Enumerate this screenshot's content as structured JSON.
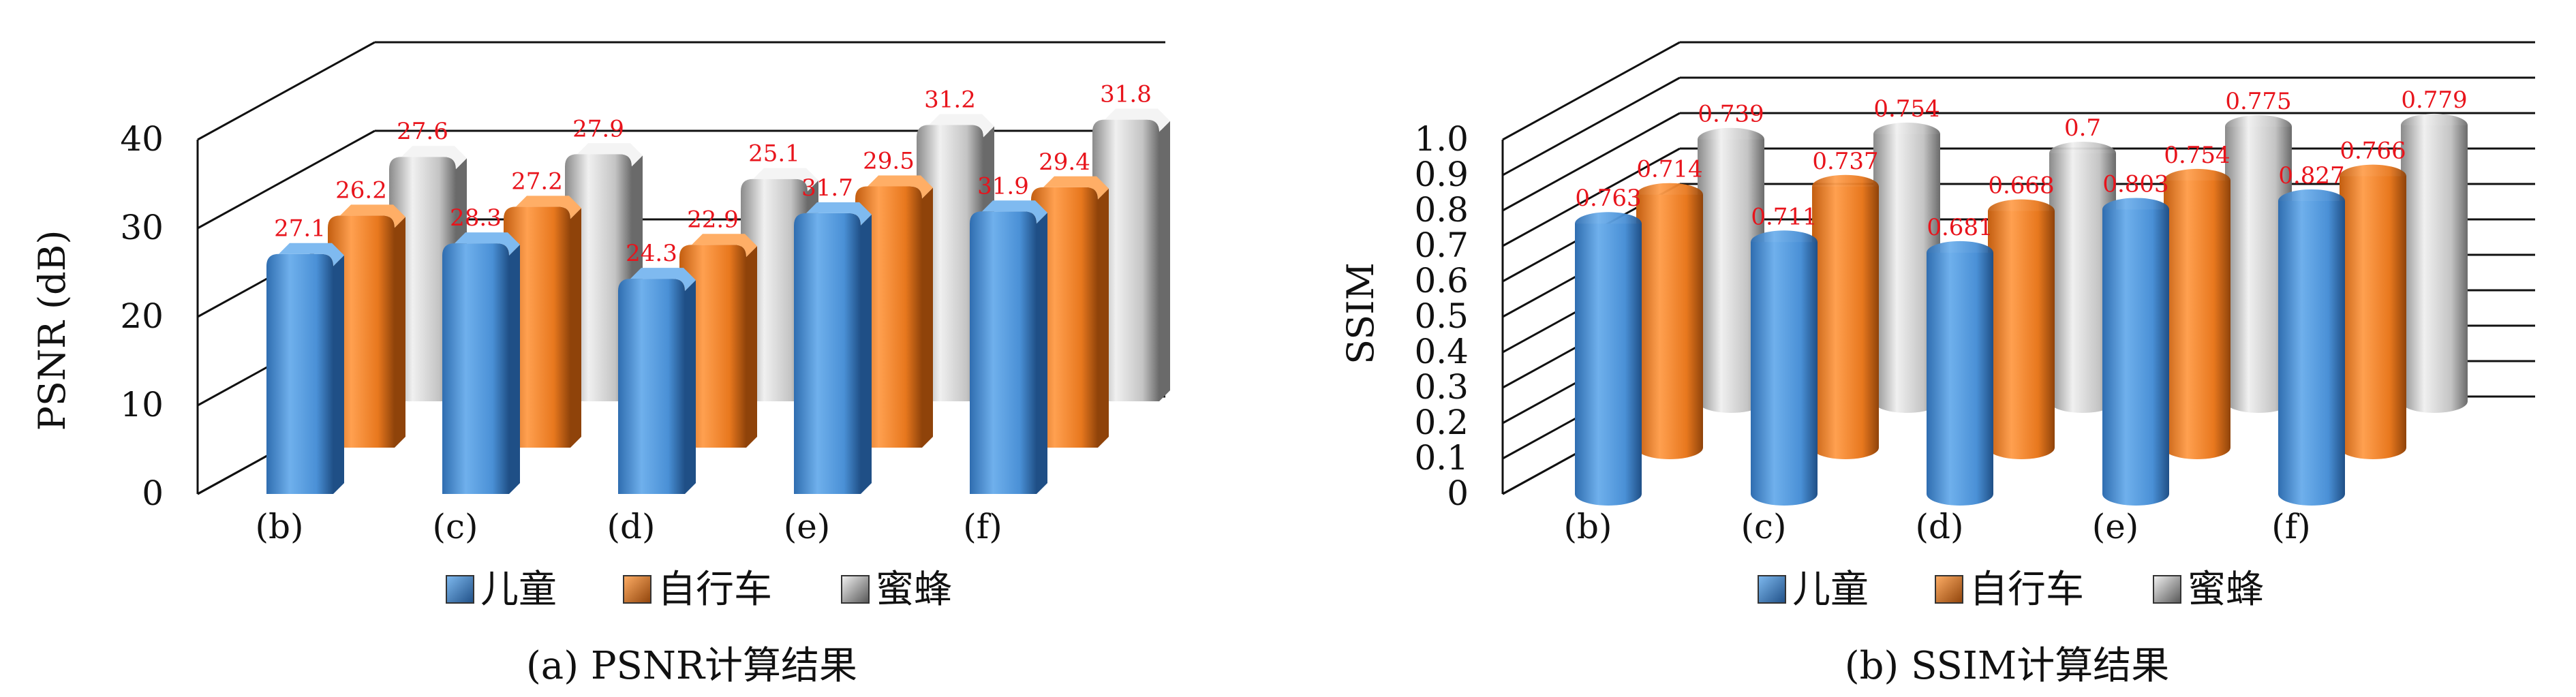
{
  "colors": {
    "series_0": "#4a90d6",
    "series_1": "#e8781e",
    "series_2": "#c4c4c4",
    "value_label": "#e8141c"
  },
  "legend_labels": [
    "儿童",
    "自行车",
    "蜜蜂"
  ],
  "chart_data": [
    {
      "type": "bar",
      "caption": "(a) PSNR计算结果",
      "ylabel": "PSNR (dB)",
      "ylim": [
        0,
        40
      ],
      "yticks": [
        "0",
        "10",
        "20",
        "30",
        "40"
      ],
      "categories": [
        "(b)",
        "(c)",
        "(d)",
        "(e)",
        "(f)"
      ],
      "series": [
        {
          "name": "儿童",
          "values": [
            27.1,
            28.3,
            24.3,
            31.7,
            31.9
          ],
          "labels": [
            "27.1",
            "28.3",
            "24.3",
            "31.7",
            "31.9"
          ]
        },
        {
          "name": "自行车",
          "values": [
            26.2,
            27.2,
            22.9,
            29.5,
            29.4
          ],
          "labels": [
            "26.2",
            "27.2",
            "22.9",
            "29.5",
            "29.4"
          ]
        },
        {
          "name": "蜜蜂",
          "values": [
            27.6,
            27.9,
            25.1,
            31.2,
            31.8
          ],
          "labels": [
            "27.6",
            "27.9",
            "25.1",
            "31.2",
            "31.8"
          ]
        }
      ],
      "legend": "bottom",
      "grid": true
    },
    {
      "type": "bar",
      "caption": "(b) SSIM计算结果",
      "ylabel": "SSIM",
      "ylim": [
        0,
        1.0
      ],
      "yticks": [
        "0",
        "0.1",
        "0.2",
        "0.3",
        "0.4",
        "0.5",
        "0.6",
        "0.7",
        "0.8",
        "0.9",
        "1.0"
      ],
      "categories": [
        "(b)",
        "(c)",
        "(d)",
        "(e)",
        "(f)"
      ],
      "series": [
        {
          "name": "儿童",
          "values": [
            0.763,
            0.711,
            0.681,
            0.803,
            0.827
          ],
          "labels": [
            "0.763",
            "0.711",
            "0.681",
            "0.803",
            "0.827"
          ]
        },
        {
          "name": "自行车",
          "values": [
            0.714,
            0.737,
            0.668,
            0.754,
            0.766
          ],
          "labels": [
            "0.714",
            "0.737",
            "0.668",
            "0.754",
            "0.766"
          ]
        },
        {
          "name": "蜜蜂",
          "values": [
            0.739,
            0.754,
            0.7,
            0.775,
            0.779
          ],
          "labels": [
            "0.739",
            "0.754",
            "0.7",
            "0.775",
            "0.779"
          ]
        }
      ],
      "legend": "bottom",
      "grid": true
    }
  ]
}
